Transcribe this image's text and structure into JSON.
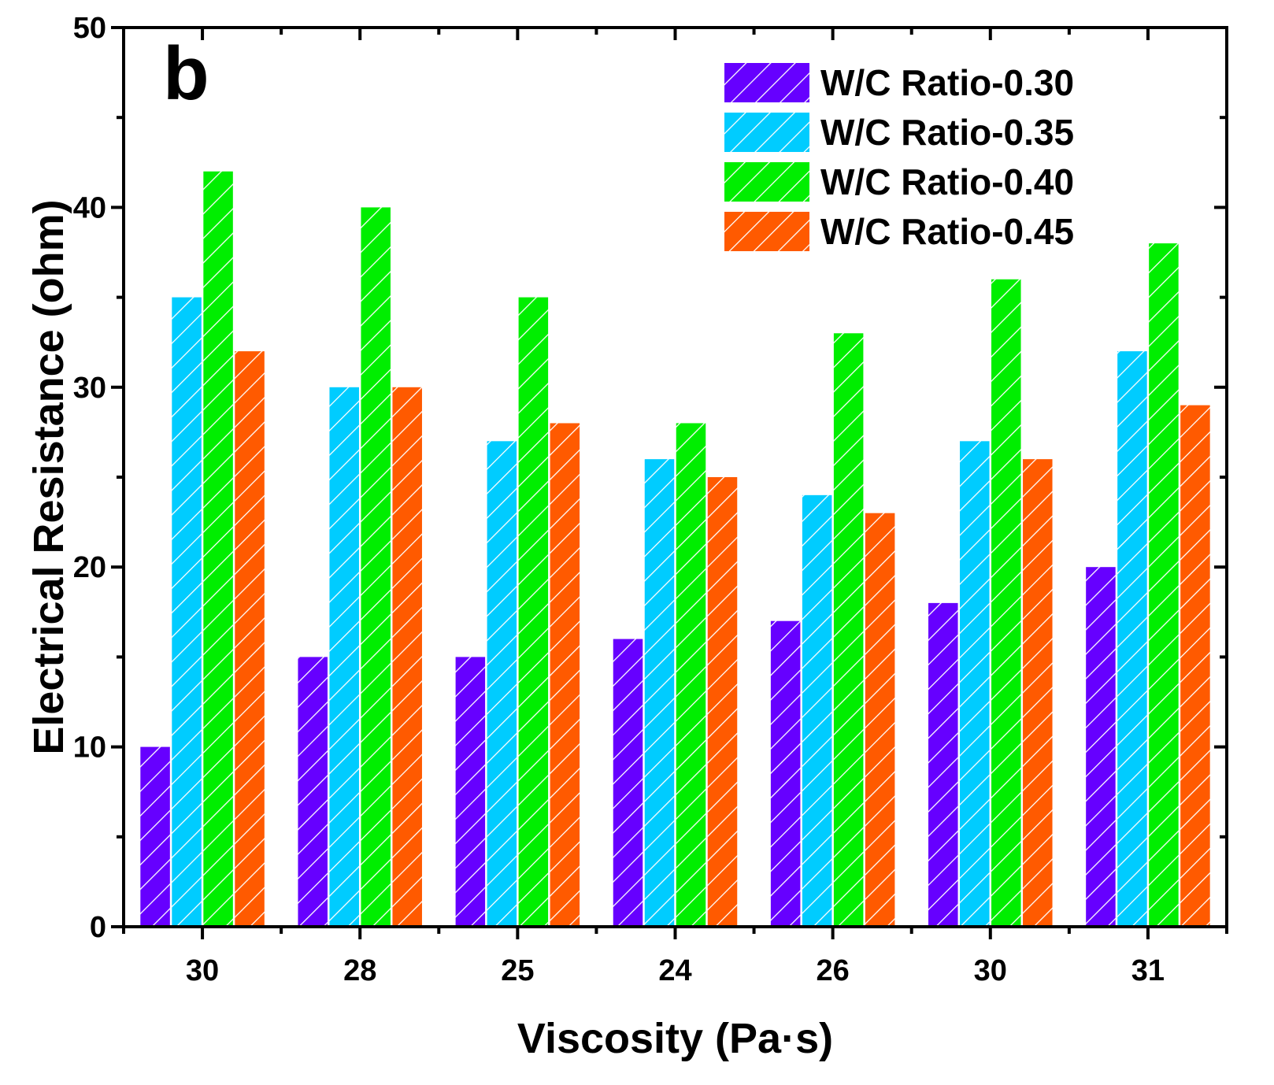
{
  "chart_data": {
    "type": "bar",
    "panel_label": "b",
    "categories": [
      "30",
      "28",
      "25",
      "24",
      "26",
      "30",
      "31"
    ],
    "series": [
      {
        "name": "W/C Ratio-0.30",
        "color": "#6600ff",
        "values": [
          10,
          15,
          15,
          16,
          17,
          18,
          20
        ]
      },
      {
        "name": "W/C Ratio-0.35",
        "color": "#00ccff",
        "values": [
          35,
          30,
          27,
          26,
          24,
          27,
          32
        ]
      },
      {
        "name": "W/C Ratio-0.40",
        "color": "#00ee00",
        "values": [
          42,
          40,
          35,
          28,
          33,
          36,
          38
        ]
      },
      {
        "name": "W/C Ratio-0.45",
        "color": "#ff5a00",
        "values": [
          32,
          30,
          28,
          25,
          23,
          26,
          29
        ]
      }
    ],
    "xlabel": "Viscosity (Pa·s)",
    "ylabel": "Electrical Resistance (ohm)",
    "ylim": [
      0,
      50
    ],
    "yticks": [
      0,
      10,
      20,
      30,
      40,
      50
    ],
    "bar_pattern": "diagonal-hatch-white",
    "legend_position": "top-right",
    "grid": false
  }
}
